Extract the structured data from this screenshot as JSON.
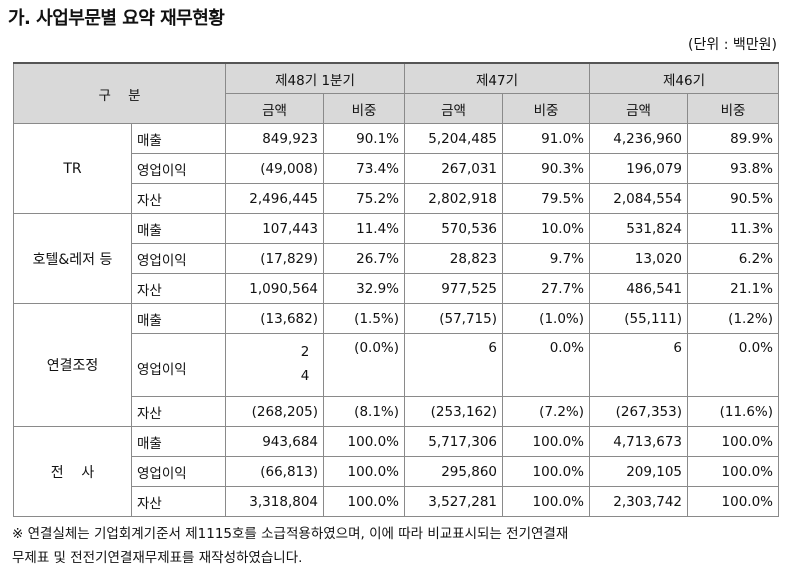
{
  "title": "가. 사업부문별 요약 재무현황",
  "unit": "(단위 : 백만원)",
  "header": {
    "category": "구    분",
    "periods": [
      "제48기 1분기",
      "제47기",
      "제46기"
    ],
    "amount": "금액",
    "ratio": "비중"
  },
  "groups": [
    {
      "name": "TR",
      "rows": [
        {
          "item": "매출",
          "v": [
            "849,923",
            "90.1%",
            "5,204,485",
            "91.0%",
            "4,236,960",
            "89.9%"
          ]
        },
        {
          "item": "영업이익",
          "v": [
            "(49,008)",
            "73.4%",
            "267,031",
            "90.3%",
            "196,079",
            "93.8%"
          ]
        },
        {
          "item": "자산",
          "v": [
            "2,496,445",
            "75.2%",
            "2,802,918",
            "79.5%",
            "2,084,554",
            "90.5%"
          ]
        }
      ]
    },
    {
      "name": "호텔&레저 등",
      "rows": [
        {
          "item": "매출",
          "v": [
            "107,443",
            "11.4%",
            "570,536",
            "10.0%",
            "531,824",
            "11.3%"
          ]
        },
        {
          "item": "영업이익",
          "v": [
            "(17,829)",
            "26.7%",
            "28,823",
            "9.7%",
            "13,020",
            "6.2%"
          ]
        },
        {
          "item": "자산",
          "v": [
            "1,090,564",
            "32.9%",
            "977,525",
            "27.7%",
            "486,541",
            "21.1%"
          ]
        }
      ]
    },
    {
      "name": "연결조정",
      "rows": [
        {
          "item": "매출",
          "v": [
            "(13,682)",
            "(1.5%)",
            "(57,715)",
            "(1.0%)",
            "(55,111)",
            "(1.2%)"
          ]
        },
        {
          "item": "영업이익",
          "v": [
            "24",
            "(0.0%)",
            "6",
            "0.0%",
            "6",
            "0.0%"
          ]
        },
        {
          "item": "자산",
          "v": [
            "(268,205)",
            "(8.1%)",
            "(253,162)",
            "(7.2%)",
            "(267,353)",
            "(11.6%)"
          ]
        }
      ]
    },
    {
      "name": "전    사",
      "rows": [
        {
          "item": "매출",
          "v": [
            "943,684",
            "100.0%",
            "5,717,306",
            "100.0%",
            "4,713,673",
            "100.0%"
          ]
        },
        {
          "item": "영업이익",
          "v": [
            "(66,813)",
            "100.0%",
            "295,860",
            "100.0%",
            "209,105",
            "100.0%"
          ]
        },
        {
          "item": "자산",
          "v": [
            "3,318,804",
            "100.0%",
            "3,527,281",
            "100.0%",
            "2,303,742",
            "100.0%"
          ]
        }
      ]
    }
  ],
  "note_line1": "※ 연결실체는 기업회계기준서 제1115호를 소급적용하였으며, 이에 따라 비교표시되는 전기연결재",
  "note_line2": "무제표 및 전전기연결재무제표를 재작성하였습니다."
}
